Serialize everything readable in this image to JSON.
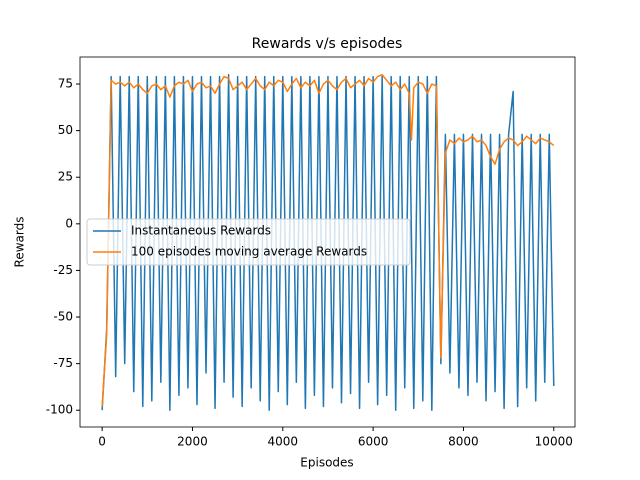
{
  "chart_data": {
    "type": "line",
    "title": "Rewards v/s episodes",
    "xlabel": "Episodes",
    "ylabel": "Rewards",
    "xlim": [
      -490,
      10470
    ],
    "ylim": [
      -109,
      89.5
    ],
    "xticks": [
      0,
      2000,
      4000,
      6000,
      8000,
      10000
    ],
    "yticks": [
      -100,
      -75,
      -50,
      -25,
      0,
      25,
      50,
      75
    ],
    "legend": "center left",
    "series": [
      {
        "name": "Instantaneous Rewards",
        "color": "#1f77b4",
        "x": [
          0,
          100,
          200,
          300,
          400,
          500,
          600,
          700,
          800,
          900,
          1000,
          1100,
          1200,
          1300,
          1400,
          1500,
          1600,
          1700,
          1800,
          1900,
          2000,
          2100,
          2200,
          2300,
          2400,
          2500,
          2600,
          2700,
          2800,
          2900,
          3000,
          3100,
          3200,
          3300,
          3400,
          3500,
          3600,
          3700,
          3800,
          3900,
          4000,
          4100,
          4200,
          4300,
          4400,
          4500,
          4600,
          4700,
          4800,
          4900,
          5000,
          5100,
          5200,
          5300,
          5400,
          5500,
          5600,
          5700,
          5800,
          5900,
          6000,
          6100,
          6200,
          6300,
          6400,
          6500,
          6600,
          6700,
          6800,
          6900,
          7000,
          7100,
          7200,
          7300,
          7400,
          7500,
          7600,
          7700,
          7800,
          7900,
          8000,
          8100,
          8200,
          8300,
          8400,
          8500,
          8600,
          8700,
          8800,
          8900,
          9000,
          9100,
          9200,
          9300,
          9400,
          9500,
          9600,
          9700,
          9800,
          9900,
          10000
        ],
        "values": [
          -100,
          -57,
          79,
          -82,
          79,
          -75,
          79,
          -90,
          79,
          -98,
          79,
          -95,
          79,
          -85,
          79,
          -100,
          79,
          -92,
          79,
          -88,
          79,
          -97,
          79,
          -80,
          79,
          -99,
          79,
          -85,
          80,
          -93,
          79,
          -98,
          79,
          -88,
          79,
          -95,
          79,
          -100,
          79,
          -90,
          79,
          -97,
          79,
          -85,
          79,
          -99,
          79,
          -92,
          79,
          -98,
          79,
          -88,
          79,
          -96,
          79,
          -91,
          79,
          -99,
          79,
          -85,
          79,
          -97,
          79,
          -92,
          79,
          -100,
          79,
          -88,
          79,
          -99,
          79,
          -95,
          79,
          -100,
          79,
          -75,
          48,
          -80,
          48,
          -88,
          48,
          -92,
          48,
          -85,
          48,
          -95,
          48,
          -90,
          48,
          -99,
          48,
          71,
          -98,
          48,
          -88,
          48,
          -95,
          48,
          -85,
          48,
          -87
        ]
      },
      {
        "name": "100 episodes moving average Rewards",
        "color": "#ff7f0e",
        "x": [
          0,
          100,
          200,
          300,
          400,
          500,
          600,
          700,
          800,
          900,
          1000,
          1100,
          1200,
          1300,
          1400,
          1500,
          1600,
          1700,
          1800,
          1900,
          2000,
          2100,
          2200,
          2300,
          2400,
          2500,
          2600,
          2700,
          2800,
          2900,
          3000,
          3100,
          3200,
          3300,
          3400,
          3500,
          3600,
          3700,
          3800,
          3900,
          4000,
          4100,
          4200,
          4300,
          4400,
          4500,
          4600,
          4700,
          4800,
          4900,
          5000,
          5100,
          5200,
          5300,
          5400,
          5500,
          5600,
          5700,
          5800,
          5900,
          6000,
          6100,
          6200,
          6300,
          6400,
          6500,
          6600,
          6700,
          6800,
          6850,
          6900,
          7000,
          7100,
          7200,
          7300,
          7400,
          7500,
          7600,
          7700,
          7800,
          7900,
          8000,
          8100,
          8200,
          8300,
          8400,
          8500,
          8600,
          8700,
          8800,
          8900,
          9000,
          9100,
          9200,
          9300,
          9400,
          9500,
          9600,
          9700,
          9800,
          9900,
          10000
        ],
        "values": [
          -98,
          -60,
          77,
          75,
          76,
          74,
          76,
          73,
          75,
          72,
          70,
          74,
          75,
          72,
          74,
          68,
          74,
          76,
          75,
          77,
          71,
          75,
          76,
          73,
          74,
          70,
          75,
          79,
          78,
          72,
          74,
          76,
          72,
          75,
          78,
          74,
          72,
          76,
          74,
          77,
          76,
          71,
          75,
          78,
          73,
          76,
          74,
          77,
          70,
          75,
          77,
          74,
          72,
          76,
          78,
          73,
          75,
          77,
          74,
          78,
          76,
          79,
          80,
          77,
          74,
          76,
          72,
          75,
          70,
          45,
          73,
          76,
          75,
          70,
          75,
          74,
          -72,
          38,
          45,
          43,
          46,
          44,
          45,
          47,
          44,
          45,
          42,
          36,
          32,
          40,
          44,
          46,
          45,
          42,
          44,
          47,
          45,
          43,
          46,
          45,
          44,
          42
        ]
      }
    ]
  }
}
